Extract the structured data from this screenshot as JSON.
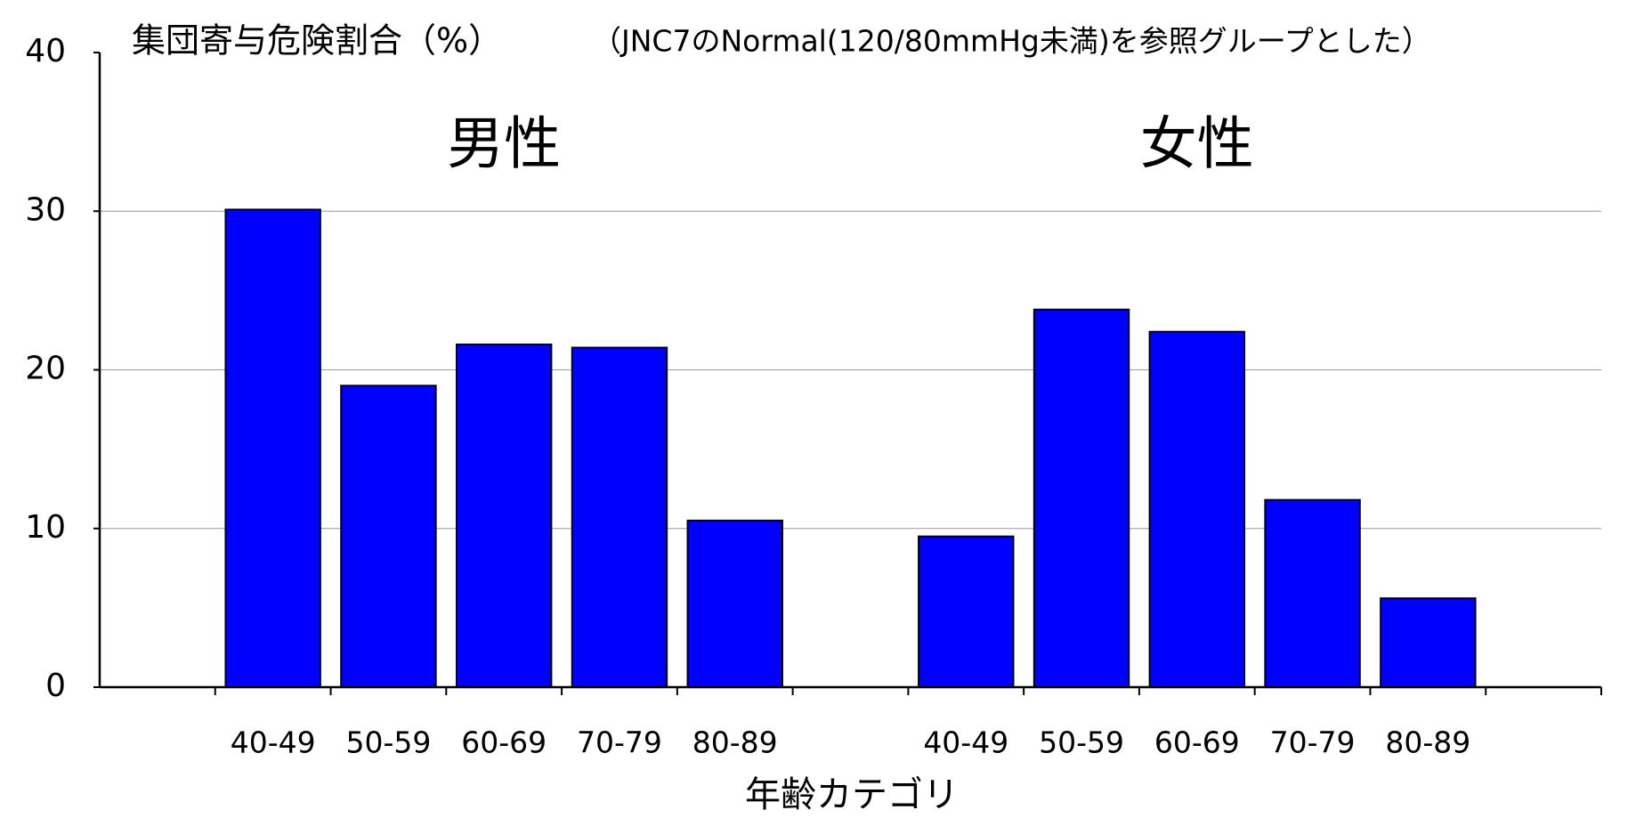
{
  "chart_data": {
    "type": "bar",
    "title": "集団寄与危険割合（%）",
    "subtitle": "（JNC7のNormal(120/80mmHg未満)を参照グループとした）",
    "group_labels": [
      "男性",
      "女性"
    ],
    "x_label": "年齢カテゴリ",
    "categories": [
      null,
      "40-49",
      "50-59",
      "60-69",
      "70-79",
      "80-89",
      null,
      "40-49",
      "50-59",
      "60-69",
      "70-79",
      "80-89",
      null
    ],
    "values": [
      null,
      30.1,
      19.0,
      21.6,
      21.4,
      10.5,
      null,
      9.5,
      23.8,
      22.4,
      11.8,
      5.6,
      null
    ],
    "color": "#0000ff",
    "ylim": [
      0,
      40
    ],
    "yticks": [
      0,
      10,
      20,
      30,
      40
    ],
    "grid": true
  }
}
